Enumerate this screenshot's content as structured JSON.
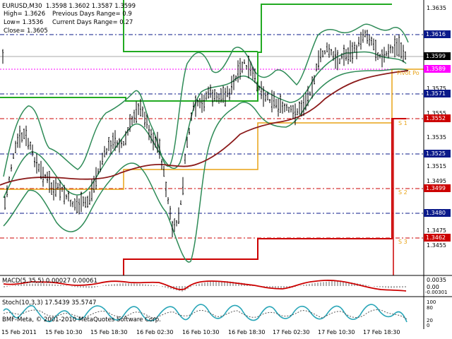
{
  "chart": {
    "header": {
      "symbol": "EURUSD,M30  1.3598 1.3602 1.3587 1.3599",
      "high": "High= 1.3626",
      "prev_range": "Previous Days Range= 0.9",
      "low": "Low= 1.3536",
      "curr_range": "Current Days Range= 0.27",
      "close": "Close= 1.3605"
    },
    "price_ticks": [
      "1.3635",
      "1.3575",
      "1.3555",
      "1.3535",
      "1.3515",
      "1.3495",
      "1.3475",
      "1.3455"
    ],
    "price_tags": [
      {
        "text": "1.3616",
        "color": "#0b1a8a",
        "fg": "#ffffff"
      },
      {
        "text": "1.3599",
        "color": "#000000",
        "fg": "#ffffff"
      },
      {
        "text": "1.3589",
        "color": "#ff00ff",
        "fg": "#ffffff"
      },
      {
        "text": "1.3571",
        "color": "#0b1a8a",
        "fg": "#ffffff"
      },
      {
        "text": "1.3552",
        "color": "#cc0000",
        "fg": "#ffffff"
      },
      {
        "text": "1.3525",
        "color": "#0b1a8a",
        "fg": "#ffffff"
      },
      {
        "text": "1.3499",
        "color": "#cc0000",
        "fg": "#ffffff"
      },
      {
        "text": "1.3480",
        "color": "#0b1a8a",
        "fg": "#ffffff"
      },
      {
        "text": "1.3462",
        "color": "#cc0000",
        "fg": "#ffffff"
      }
    ],
    "level_labels": {
      "pivot": "Pivot Po",
      "s1": "S 1",
      "s2": "S 2",
      "s3": "S 3"
    },
    "macd": {
      "label": "MACD(5,35,5) 0.00027 0.00061",
      "ticks": [
        "0.0035",
        "0.00",
        "-0.00301"
      ]
    },
    "stoch": {
      "label": "Stoch(10,3,3) 17.5439 35.5747",
      "copyright": "BMF-Meta, © 2001-2010 MetaQuotes Software Corp.",
      "ticks": [
        "100",
        "80",
        "20",
        "0"
      ]
    },
    "time_labels": [
      "15 Feb 2011",
      "15 Feb 10:30",
      "15 Feb 18:30",
      "16 Feb 02:30",
      "16 Feb 10:30",
      "16 Feb 18:30",
      "17 Feb 02:30",
      "17 Feb 10:30",
      "17 Feb 18:30"
    ],
    "colors": {
      "bars": "#000000",
      "bollinger": "#2e8b57",
      "ma": "#8b1a1a",
      "pivot": "#e8a317",
      "resistance": "#22aa22",
      "support": "#cc0000",
      "grid_blue": "#0b1a8a"
    }
  }
}
